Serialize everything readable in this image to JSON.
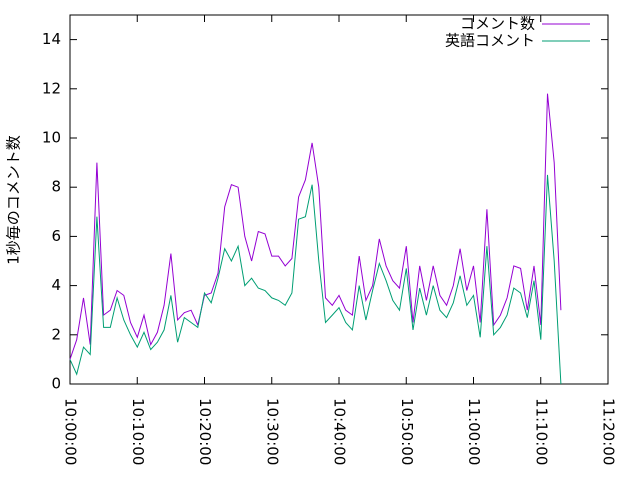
{
  "chart_data": {
    "type": "line",
    "ylabel": "1秒毎のコメント数",
    "x": [
      "10:00:00",
      "10:01:00",
      "10:02:00",
      "10:03:00",
      "10:04:00",
      "10:05:00",
      "10:06:00",
      "10:07:00",
      "10:08:00",
      "10:09:00",
      "10:10:00",
      "10:11:00",
      "10:12:00",
      "10:13:00",
      "10:14:00",
      "10:15:00",
      "10:16:00",
      "10:17:00",
      "10:18:00",
      "10:19:00",
      "10:20:00",
      "10:21:00",
      "10:22:00",
      "10:23:00",
      "10:24:00",
      "10:25:00",
      "10:26:00",
      "10:27:00",
      "10:28:00",
      "10:29:00",
      "10:30:00",
      "10:31:00",
      "10:32:00",
      "10:33:00",
      "10:34:00",
      "10:35:00",
      "10:36:00",
      "10:37:00",
      "10:38:00",
      "10:39:00",
      "10:40:00",
      "10:41:00",
      "10:42:00",
      "10:43:00",
      "10:44:00",
      "10:45:00",
      "10:46:00",
      "10:47:00",
      "10:48:00",
      "10:49:00",
      "10:50:00",
      "10:51:00",
      "10:52:00",
      "10:53:00",
      "10:54:00",
      "10:55:00",
      "10:56:00",
      "10:57:00",
      "10:58:00",
      "10:59:00",
      "11:00:00",
      "11:01:00",
      "11:02:00",
      "11:03:00",
      "11:04:00",
      "11:05:00",
      "11:06:00",
      "11:07:00",
      "11:08:00",
      "11:09:00",
      "11:10:00",
      "11:11:00",
      "11:12:00",
      "11:13:00"
    ],
    "series": [
      {
        "name": "コメント数",
        "color": "#9400d3",
        "values": [
          1.0,
          1.8,
          3.5,
          1.6,
          9.0,
          2.8,
          3.0,
          3.8,
          3.6,
          2.5,
          1.9,
          2.8,
          1.6,
          2.1,
          3.2,
          5.3,
          2.6,
          2.9,
          3.0,
          2.4,
          3.6,
          3.7,
          4.5,
          7.2,
          8.1,
          8.0,
          6.0,
          5.0,
          6.2,
          6.1,
          5.2,
          5.2,
          4.8,
          5.1,
          7.6,
          8.3,
          9.8,
          8.0,
          3.5,
          3.2,
          3.6,
          3.0,
          2.8,
          5.2,
          3.4,
          4.0,
          5.9,
          4.8,
          4.2,
          3.9,
          5.6,
          2.5,
          4.8,
          3.4,
          4.8,
          3.6,
          3.2,
          4.0,
          5.5,
          3.8,
          4.8,
          2.5,
          7.1,
          2.4,
          2.8,
          3.5,
          4.8,
          4.7,
          3.0,
          4.8,
          2.4,
          11.8,
          9.0,
          3.0
        ]
      },
      {
        "name": "英語コメント",
        "color": "#009e73",
        "values": [
          1.0,
          0.4,
          1.5,
          1.2,
          6.8,
          2.3,
          2.3,
          3.5,
          2.6,
          2.0,
          1.5,
          2.1,
          1.4,
          1.7,
          2.2,
          3.6,
          1.7,
          2.7,
          2.5,
          2.3,
          3.7,
          3.3,
          4.3,
          5.5,
          5.0,
          5.6,
          4.0,
          4.3,
          3.9,
          3.8,
          3.5,
          3.4,
          3.2,
          3.7,
          6.7,
          6.8,
          8.1,
          5.0,
          2.5,
          2.8,
          3.1,
          2.5,
          2.2,
          4.0,
          2.6,
          3.8,
          4.9,
          4.2,
          3.4,
          3.0,
          4.7,
          2.2,
          3.9,
          2.8,
          4.0,
          3.0,
          2.7,
          3.3,
          4.4,
          3.2,
          3.6,
          1.9,
          5.6,
          2.0,
          2.3,
          2.8,
          3.9,
          3.7,
          2.7,
          4.2,
          1.8,
          8.5,
          5.0,
          0.0
        ]
      }
    ],
    "xlim": [
      "10:00:00",
      "11:20:00"
    ],
    "xticks": [
      "10:00:00",
      "10:10:00",
      "10:20:00",
      "10:30:00",
      "10:40:00",
      "10:50:00",
      "11:00:00",
      "11:10:00",
      "11:20:00"
    ],
    "ylim": [
      0,
      15
    ],
    "yticks": [
      0,
      2,
      4,
      6,
      8,
      10,
      12,
      14
    ],
    "legend": "top-right"
  }
}
